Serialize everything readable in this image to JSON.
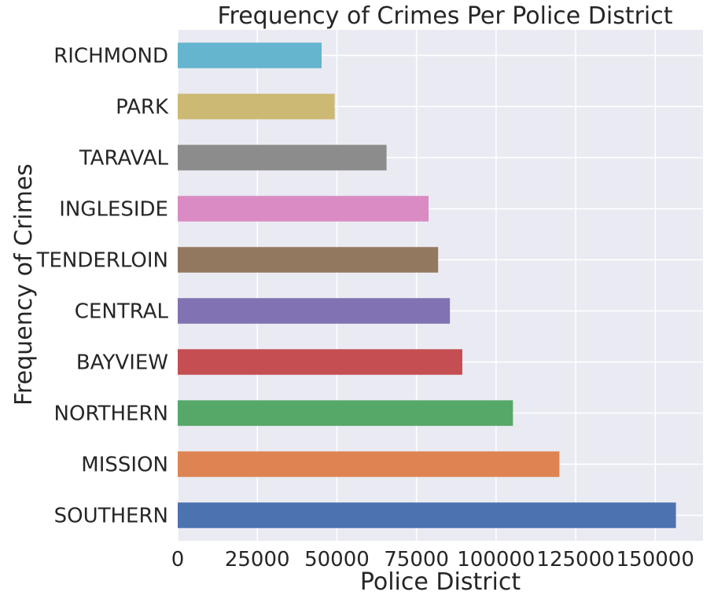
{
  "chart_data": {
    "type": "bar",
    "orientation": "horizontal",
    "title": "Frequency of Crimes Per Police District",
    "xlabel": "Police District",
    "ylabel": "Frequency of Crimes",
    "categories": [
      "SOUTHERN",
      "MISSION",
      "NORTHERN",
      "BAYVIEW",
      "CENTRAL",
      "TENDERLOIN",
      "INGLESIDE",
      "TARAVAL",
      "PARK",
      "RICHMOND"
    ],
    "values": [
      156500,
      119900,
      105300,
      89400,
      85500,
      81800,
      78800,
      65600,
      49300,
      45200
    ],
    "bar_colors": [
      "#4c72b0",
      "#dd8452",
      "#55a868",
      "#c44e52",
      "#8172b3",
      "#937860",
      "#da8bc3",
      "#8c8c8c",
      "#ccb974",
      "#64b5cd"
    ],
    "xlim": [
      0,
      165000
    ],
    "xticks": [
      "0",
      "25000",
      "50000",
      "75000",
      "100000",
      "125000",
      "150000"
    ],
    "grid": true,
    "background_color": "#eaeaf2",
    "grid_color": "#ffffff"
  }
}
